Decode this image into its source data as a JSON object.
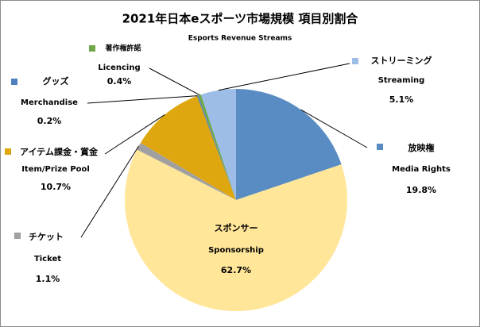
{
  "chart_data": {
    "type": "pie",
    "title": "2021年日本eスポーツ市場規模 項目別割合",
    "subtitle": "Esports Revenue Streams",
    "categories": [
      "放映権",
      "スポンサー",
      "チケット",
      "アイテム課金・賞金",
      "グッズ",
      "著作権許諾",
      "ストリーミング"
    ],
    "categories_en": [
      "Media Rights",
      "Sponsorship",
      "Ticket",
      "Item/Prize Pool",
      "Merchandise",
      "Licencing",
      "Streaming"
    ],
    "values": [
      19.8,
      62.7,
      1.1,
      10.7,
      0.2,
      0.4,
      5.1
    ],
    "value_labels": [
      "19.8%",
      "62.7%",
      "1.1%",
      "10.7%",
      "0.2%",
      "0.4%",
      "5.1%"
    ],
    "colors": [
      "#5a8cc4",
      "#ffe699",
      "#a0a0a0",
      "#dfa70f",
      "#4f7fbf",
      "#6fa84a",
      "#9dbde6"
    ]
  }
}
